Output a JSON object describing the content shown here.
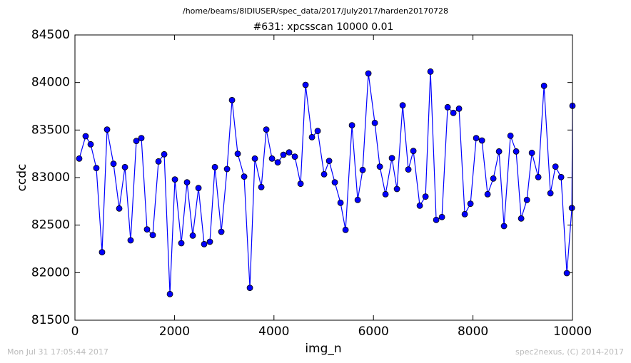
{
  "chart_data": {
    "type": "line",
    "header": "/home/beams/8IDIUSER/spec_data/2017/July2017/harden20170728",
    "title": "#631: xpcsscan 10000 0.01",
    "xlabel": "img_n",
    "ylabel": "ccdc",
    "footer_left": "Mon Jul 31 17:05:44 2017",
    "footer_right": "spec2nexus, (C) 2014-2017",
    "color": "#0000ff",
    "x": [
      86,
      215,
      316,
      430,
      545,
      646,
      775,
      890,
      1005,
      1119,
      1234,
      1335,
      1449,
      1564,
      1679,
      1794,
      1909,
      2009,
      2138,
      2253,
      2368,
      2483,
      2597,
      2712,
      2813,
      2942,
      3057,
      3157,
      3272,
      3401,
      3516,
      3616,
      3746,
      3846,
      3961,
      4076,
      4190,
      4305,
      4420,
      4535,
      4635,
      4764,
      4879,
      5008,
      5109,
      5223,
      5338,
      5439,
      5568,
      5683,
      5783,
      5898,
      6027,
      6128,
      6242,
      6371,
      6472,
      6587,
      6701,
      6802,
      6931,
      7046,
      7146,
      7261,
      7376,
      7491,
      7606,
      7720,
      7835,
      7950,
      8065,
      8180,
      8294,
      8409,
      8524,
      8624,
      8754,
      8868,
      8969,
      9084,
      9184,
      9313,
      9428,
      9557,
      9658,
      9772,
      9887,
      9988,
      10000
    ],
    "values": [
      83200,
      83435,
      83350,
      83100,
      82215,
      83505,
      83145,
      82675,
      83110,
      82340,
      83385,
      83415,
      82455,
      82395,
      83170,
      83245,
      81775,
      82980,
      82310,
      82950,
      82390,
      82890,
      82300,
      82325,
      83110,
      82430,
      83090,
      83815,
      83250,
      83010,
      81840,
      83200,
      82900,
      83505,
      83200,
      83160,
      83240,
      83265,
      83220,
      82935,
      83975,
      83425,
      83490,
      83035,
      83175,
      82950,
      82735,
      82450,
      83550,
      82765,
      83080,
      84095,
      83575,
      83115,
      82825,
      83205,
      82880,
      83760,
      83085,
      83280,
      82705,
      82800,
      84115,
      82555,
      82585,
      83740,
      83680,
      83725,
      82615,
      82725,
      83415,
      83390,
      82825,
      82990,
      83275,
      82490,
      83440,
      83275,
      82570,
      82765,
      83260,
      83005,
      83965,
      82835,
      83115,
      83005,
      81995,
      82680,
      83755
    ],
    "xlim": [
      0,
      10000
    ],
    "xticks": [
      0,
      2000,
      4000,
      6000,
      8000,
      10000
    ],
    "ylim": [
      81500,
      84500
    ],
    "yticks": [
      81500,
      82000,
      82500,
      83000,
      83500,
      84000,
      84500
    ],
    "grid": false
  }
}
